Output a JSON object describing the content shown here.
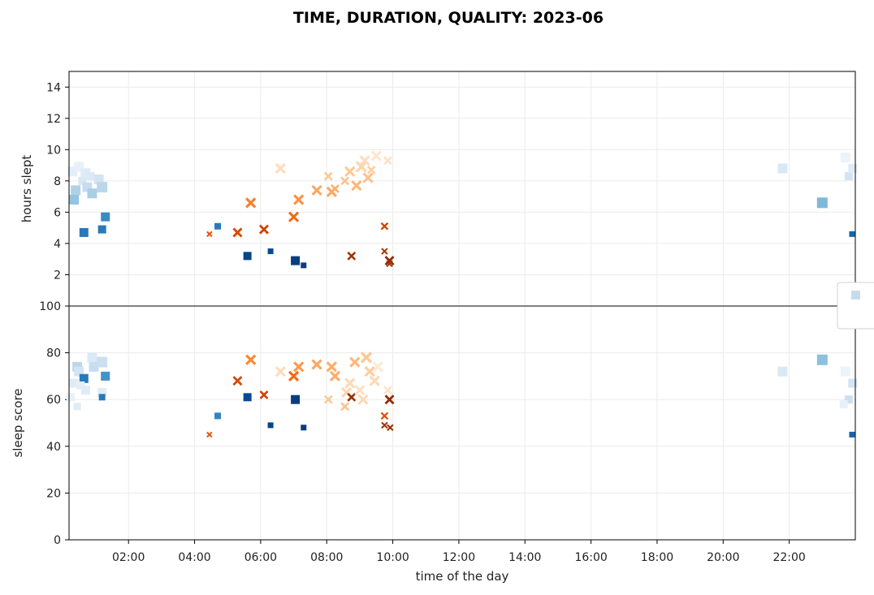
{
  "chart_data": {
    "type": "scatter",
    "title": "TIME, DURATION, QUALITY: 2023-06",
    "xlabel": "time of the day",
    "x_ticks": [
      "02:00",
      "04:00",
      "06:00",
      "08:00",
      "10:00",
      "12:00",
      "14:00",
      "16:00",
      "18:00",
      "20:00",
      "22:00"
    ],
    "x_tick_hours": [
      2,
      4,
      6,
      8,
      10,
      12,
      14,
      16,
      18,
      20,
      22
    ],
    "xlim_hours": [
      0.2,
      24.0
    ],
    "grid": true,
    "legend": "right, partially cut off",
    "colormaps": {
      "square": "Blues",
      "x": "Oranges"
    },
    "panels": [
      {
        "ylabel": "hours slept",
        "ylim": [
          0,
          15
        ],
        "y_ticks": [
          "2",
          "4",
          "6",
          "8",
          "10",
          "12",
          "14"
        ],
        "y_tick_values": [
          2,
          4,
          6,
          8,
          10,
          12,
          14
        ],
        "points": [
          {
            "x": 0.3,
            "y": 8.6,
            "m": "s",
            "s": 12,
            "c": 0.1
          },
          {
            "x": 0.5,
            "y": 8.9,
            "m": "s",
            "s": 12,
            "c": 0.08
          },
          {
            "x": 0.7,
            "y": 8.5,
            "m": "s",
            "s": 12,
            "c": 0.12
          },
          {
            "x": 0.85,
            "y": 8.3,
            "m": "s",
            "s": 10,
            "c": 0.14
          },
          {
            "x": 1.1,
            "y": 8.1,
            "m": "s",
            "s": 12,
            "c": 0.18
          },
          {
            "x": 0.6,
            "y": 8.0,
            "m": "s",
            "s": 10,
            "c": 0.16
          },
          {
            "x": 0.4,
            "y": 7.4,
            "m": "s",
            "s": 12,
            "c": 0.32
          },
          {
            "x": 0.75,
            "y": 7.6,
            "m": "s",
            "s": 12,
            "c": 0.24
          },
          {
            "x": 0.9,
            "y": 7.2,
            "m": "s",
            "s": 12,
            "c": 0.34
          },
          {
            "x": 1.2,
            "y": 7.6,
            "m": "s",
            "s": 13,
            "c": 0.28
          },
          {
            "x": 0.35,
            "y": 6.8,
            "m": "s",
            "s": 12,
            "c": 0.4
          },
          {
            "x": 0.65,
            "y": 4.7,
            "m": "s",
            "s": 11,
            "c": 0.72
          },
          {
            "x": 1.2,
            "y": 4.9,
            "m": "s",
            "s": 10,
            "c": 0.72
          },
          {
            "x": 1.3,
            "y": 5.7,
            "m": "s",
            "s": 11,
            "c": 0.65
          },
          {
            "x": 4.7,
            "y": 5.1,
            "m": "s",
            "s": 8,
            "c": 0.72
          },
          {
            "x": 5.6,
            "y": 3.2,
            "m": "s",
            "s": 10,
            "c": 0.92
          },
          {
            "x": 6.3,
            "y": 3.5,
            "m": "s",
            "s": 7,
            "c": 0.9
          },
          {
            "x": 7.05,
            "y": 2.9,
            "m": "s",
            "s": 11,
            "c": 0.95
          },
          {
            "x": 7.3,
            "y": 2.6,
            "m": "s",
            "s": 7,
            "c": 0.95
          },
          {
            "x": 4.45,
            "y": 4.6,
            "m": "x",
            "s": 6,
            "c": 0.7
          },
          {
            "x": 5.3,
            "y": 4.7,
            "m": "x",
            "s": 10,
            "c": 0.75
          },
          {
            "x": 5.7,
            "y": 6.6,
            "m": "x",
            "s": 11,
            "c": 0.55
          },
          {
            "x": 6.1,
            "y": 4.9,
            "m": "x",
            "s": 10,
            "c": 0.78
          },
          {
            "x": 6.6,
            "y": 8.8,
            "m": "x",
            "s": 11,
            "c": 0.18
          },
          {
            "x": 7.0,
            "y": 5.7,
            "m": "x",
            "s": 11,
            "c": 0.62
          },
          {
            "x": 7.15,
            "y": 6.8,
            "m": "x",
            "s": 11,
            "c": 0.48
          },
          {
            "x": 7.7,
            "y": 7.4,
            "m": "x",
            "s": 11,
            "c": 0.4
          },
          {
            "x": 8.05,
            "y": 8.3,
            "m": "x",
            "s": 9,
            "c": 0.28
          },
          {
            "x": 8.15,
            "y": 7.3,
            "m": "x",
            "s": 11,
            "c": 0.4
          },
          {
            "x": 8.25,
            "y": 7.5,
            "m": "x",
            "s": 9,
            "c": 0.38
          },
          {
            "x": 8.55,
            "y": 8.0,
            "m": "x",
            "s": 9,
            "c": 0.3
          },
          {
            "x": 8.7,
            "y": 8.6,
            "m": "x",
            "s": 11,
            "c": 0.28
          },
          {
            "x": 8.75,
            "y": 3.2,
            "m": "x",
            "s": 9,
            "c": 0.9
          },
          {
            "x": 8.9,
            "y": 7.7,
            "m": "x",
            "s": 11,
            "c": 0.34
          },
          {
            "x": 9.05,
            "y": 8.9,
            "m": "x",
            "s": 12,
            "c": 0.22
          },
          {
            "x": 9.15,
            "y": 9.3,
            "m": "x",
            "s": 11,
            "c": 0.18
          },
          {
            "x": 9.25,
            "y": 8.2,
            "m": "x",
            "s": 11,
            "c": 0.3
          },
          {
            "x": 9.35,
            "y": 8.7,
            "m": "x",
            "s": 9,
            "c": 0.26
          },
          {
            "x": 9.5,
            "y": 9.6,
            "m": "x",
            "s": 11,
            "c": 0.12
          },
          {
            "x": 9.75,
            "y": 5.1,
            "m": "x",
            "s": 8,
            "c": 0.78
          },
          {
            "x": 9.75,
            "y": 3.5,
            "m": "x",
            "s": 7,
            "c": 0.88
          },
          {
            "x": 9.85,
            "y": 9.3,
            "m": "x",
            "s": 9,
            "c": 0.16
          },
          {
            "x": 9.9,
            "y": 2.9,
            "m": "x",
            "s": 10,
            "c": 0.95
          },
          {
            "x": 9.9,
            "y": 2.7,
            "m": "x",
            "s": 7,
            "c": 0.9
          },
          {
            "x": 21.8,
            "y": 8.8,
            "m": "s",
            "s": 12,
            "c": 0.15
          },
          {
            "x": 23.0,
            "y": 6.6,
            "m": "s",
            "s": 13,
            "c": 0.45
          },
          {
            "x": 23.7,
            "y": 9.5,
            "m": "s",
            "s": 12,
            "c": 0.06
          },
          {
            "x": 23.8,
            "y": 8.3,
            "m": "s",
            "s": 10,
            "c": 0.18
          },
          {
            "x": 23.92,
            "y": 8.8,
            "m": "s",
            "s": 11,
            "c": 0.12
          },
          {
            "x": 23.9,
            "y": 4.6,
            "m": "s",
            "s": 7,
            "c": 0.8
          }
        ]
      },
      {
        "ylabel": "sleep score",
        "ylim": [
          0,
          100
        ],
        "y_ticks": [
          "0",
          "20",
          "40",
          "60",
          "80",
          "100"
        ],
        "y_tick_values": [
          0,
          20,
          40,
          60,
          80,
          100
        ],
        "points": [
          {
            "x": 0.25,
            "y": 61,
            "m": "s",
            "s": 10,
            "c": 0.08
          },
          {
            "x": 0.35,
            "y": 67,
            "m": "s",
            "s": 11,
            "c": 0.12
          },
          {
            "x": 0.45,
            "y": 74,
            "m": "s",
            "s": 12,
            "c": 0.28
          },
          {
            "x": 0.5,
            "y": 72,
            "m": "s",
            "s": 12,
            "c": 0.18
          },
          {
            "x": 0.65,
            "y": 69,
            "m": "s",
            "s": 11,
            "c": 0.72
          },
          {
            "x": 0.55,
            "y": 66,
            "m": "s",
            "s": 10,
            "c": 0.1
          },
          {
            "x": 0.7,
            "y": 64,
            "m": "s",
            "s": 11,
            "c": 0.12
          },
          {
            "x": 0.9,
            "y": 78,
            "m": "s",
            "s": 12,
            "c": 0.14
          },
          {
            "x": 0.95,
            "y": 74,
            "m": "s",
            "s": 12,
            "c": 0.24
          },
          {
            "x": 1.2,
            "y": 76,
            "m": "s",
            "s": 13,
            "c": 0.22
          },
          {
            "x": 0.45,
            "y": 57,
            "m": "s",
            "s": 9,
            "c": 0.12
          },
          {
            "x": 1.2,
            "y": 63,
            "m": "s",
            "s": 11,
            "c": 0.12
          },
          {
            "x": 1.3,
            "y": 70,
            "m": "s",
            "s": 11,
            "c": 0.62
          },
          {
            "x": 1.2,
            "y": 61,
            "m": "s",
            "s": 8,
            "c": 0.72
          },
          {
            "x": 4.7,
            "y": 53,
            "m": "s",
            "s": 8,
            "c": 0.68
          },
          {
            "x": 5.6,
            "y": 61,
            "m": "s",
            "s": 10,
            "c": 0.9
          },
          {
            "x": 6.3,
            "y": 49,
            "m": "s",
            "s": 7,
            "c": 0.92
          },
          {
            "x": 7.05,
            "y": 60,
            "m": "s",
            "s": 11,
            "c": 0.95
          },
          {
            "x": 7.3,
            "y": 48,
            "m": "s",
            "s": 7,
            "c": 0.95
          },
          {
            "x": 4.45,
            "y": 45,
            "m": "x",
            "s": 6,
            "c": 0.7
          },
          {
            "x": 5.3,
            "y": 68,
            "m": "x",
            "s": 10,
            "c": 0.75
          },
          {
            "x": 5.7,
            "y": 77,
            "m": "x",
            "s": 11,
            "c": 0.52
          },
          {
            "x": 6.1,
            "y": 62,
            "m": "x",
            "s": 9,
            "c": 0.78
          },
          {
            "x": 6.6,
            "y": 72,
            "m": "x",
            "s": 11,
            "c": 0.18
          },
          {
            "x": 7.0,
            "y": 70,
            "m": "x",
            "s": 11,
            "c": 0.62
          },
          {
            "x": 7.15,
            "y": 74,
            "m": "x",
            "s": 11,
            "c": 0.45
          },
          {
            "x": 7.7,
            "y": 75,
            "m": "x",
            "s": 11,
            "c": 0.4
          },
          {
            "x": 8.05,
            "y": 60,
            "m": "x",
            "s": 9,
            "c": 0.28
          },
          {
            "x": 8.15,
            "y": 74,
            "m": "x",
            "s": 11,
            "c": 0.38
          },
          {
            "x": 8.25,
            "y": 70,
            "m": "x",
            "s": 11,
            "c": 0.38
          },
          {
            "x": 8.55,
            "y": 57,
            "m": "x",
            "s": 9,
            "c": 0.3
          },
          {
            "x": 8.6,
            "y": 63,
            "m": "x",
            "s": 11,
            "c": 0.22
          },
          {
            "x": 8.7,
            "y": 67,
            "m": "x",
            "s": 11,
            "c": 0.2
          },
          {
            "x": 8.75,
            "y": 61,
            "m": "x",
            "s": 9,
            "c": 0.92
          },
          {
            "x": 8.85,
            "y": 76,
            "m": "x",
            "s": 11,
            "c": 0.34
          },
          {
            "x": 9.0,
            "y": 64,
            "m": "x",
            "s": 11,
            "c": 0.16
          },
          {
            "x": 9.1,
            "y": 60,
            "m": "x",
            "s": 11,
            "c": 0.2
          },
          {
            "x": 9.2,
            "y": 78,
            "m": "x",
            "s": 12,
            "c": 0.28
          },
          {
            "x": 9.3,
            "y": 72,
            "m": "x",
            "s": 11,
            "c": 0.26
          },
          {
            "x": 9.45,
            "y": 68,
            "m": "x",
            "s": 11,
            "c": 0.2
          },
          {
            "x": 9.55,
            "y": 74,
            "m": "x",
            "s": 11,
            "c": 0.1
          },
          {
            "x": 9.75,
            "y": 53,
            "m": "x",
            "s": 8,
            "c": 0.72
          },
          {
            "x": 9.75,
            "y": 49,
            "m": "x",
            "s": 7,
            "c": 0.88
          },
          {
            "x": 9.85,
            "y": 64,
            "m": "x",
            "s": 9,
            "c": 0.14
          },
          {
            "x": 9.9,
            "y": 60,
            "m": "x",
            "s": 10,
            "c": 0.95
          },
          {
            "x": 9.92,
            "y": 48,
            "m": "x",
            "s": 7,
            "c": 0.92
          },
          {
            "x": 21.8,
            "y": 72,
            "m": "s",
            "s": 12,
            "c": 0.15
          },
          {
            "x": 23.0,
            "y": 77,
            "m": "s",
            "s": 13,
            "c": 0.42
          },
          {
            "x": 23.7,
            "y": 72,
            "m": "s",
            "s": 12,
            "c": 0.06
          },
          {
            "x": 23.8,
            "y": 60,
            "m": "s",
            "s": 10,
            "c": 0.22
          },
          {
            "x": 23.65,
            "y": 58,
            "m": "s",
            "s": 10,
            "c": 0.08
          },
          {
            "x": 23.92,
            "y": 67,
            "m": "s",
            "s": 11,
            "c": 0.18
          },
          {
            "x": 23.9,
            "y": 45,
            "m": "s",
            "s": 7,
            "c": 0.8
          }
        ]
      }
    ]
  }
}
